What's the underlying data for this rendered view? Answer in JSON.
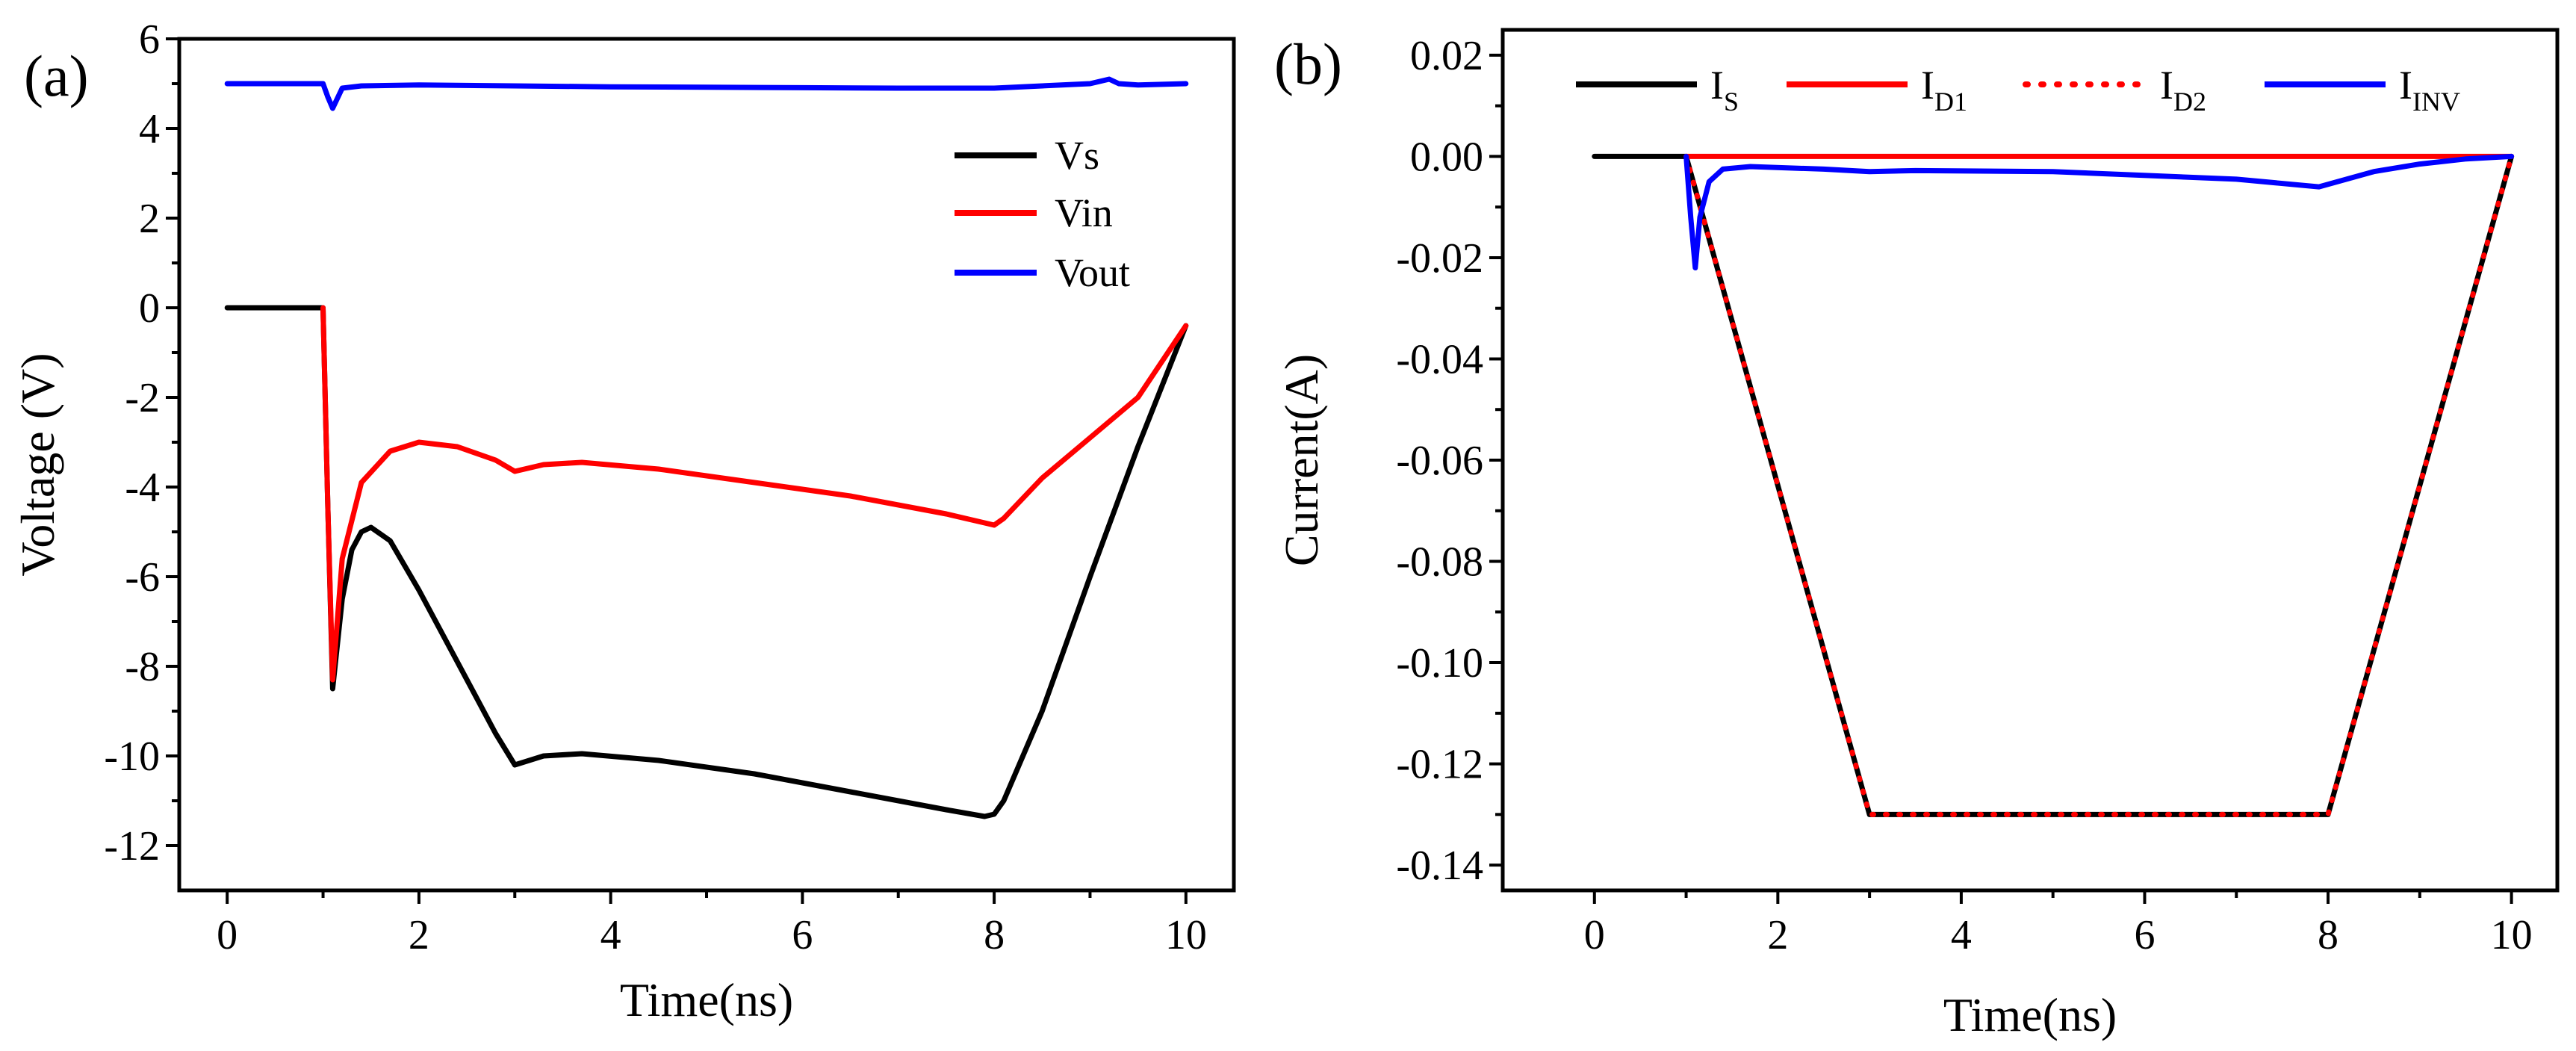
{
  "chart_data": [
    {
      "panel_label": "(a)",
      "type": "line",
      "xlabel": "Time(ns)",
      "ylabel": "Voltage (V)",
      "xlim": [
        -0.5,
        10.5
      ],
      "ylim": [
        -13,
        6
      ],
      "xticks": [
        0,
        2,
        4,
        6,
        8,
        10
      ],
      "yticks": [
        6,
        4,
        2,
        0,
        -2,
        -4,
        -6,
        -8,
        -10,
        -12
      ],
      "tick_labels_x": [
        "0",
        "2",
        "4",
        "6",
        "8",
        "10"
      ],
      "tick_labels_y": [
        "6",
        "4",
        "2",
        "0",
        "-2",
        "-4",
        "-6",
        "-8",
        "-10",
        "-12"
      ],
      "grid": false,
      "legend_position": "top-right",
      "series": [
        {
          "name": "Vs",
          "color": "#000000",
          "dash": "solid",
          "x": [
            0,
            1.0,
            1.05,
            1.1,
            1.2,
            1.3,
            1.4,
            1.5,
            1.7,
            2.0,
            2.4,
            2.8,
            3.0,
            3.3,
            3.7,
            4.5,
            5.5,
            6.5,
            7.5,
            7.9,
            8.0,
            8.1,
            8.5,
            9.0,
            9.5,
            10.0
          ],
          "y": [
            0,
            0,
            -4.5,
            -8.5,
            -6.5,
            -5.4,
            -5.0,
            -4.9,
            -5.2,
            -6.3,
            -7.9,
            -9.5,
            -10.2,
            -10.0,
            -9.95,
            -10.1,
            -10.4,
            -10.8,
            -11.2,
            -11.35,
            -11.3,
            -11.0,
            -9.0,
            -6.0,
            -3.1,
            -0.4
          ]
        },
        {
          "name": "Vin",
          "color": "#ff0000",
          "dash": "solid",
          "x": [
            1.0,
            1.05,
            1.1,
            1.2,
            1.4,
            1.7,
            2.0,
            2.4,
            2.8,
            3.0,
            3.3,
            3.7,
            4.5,
            5.5,
            6.5,
            7.5,
            7.9,
            8.0,
            8.1,
            8.5,
            9.0,
            9.5,
            10.0
          ],
          "y": [
            0,
            -4.5,
            -8.3,
            -5.6,
            -3.9,
            -3.2,
            -3.0,
            -3.1,
            -3.4,
            -3.65,
            -3.5,
            -3.45,
            -3.6,
            -3.9,
            -4.2,
            -4.6,
            -4.8,
            -4.85,
            -4.7,
            -3.8,
            -2.9,
            -2.0,
            -0.4
          ]
        },
        {
          "name": "Vout",
          "color": "#0000ff",
          "dash": "solid",
          "x": [
            0,
            1.0,
            1.05,
            1.1,
            1.2,
            1.4,
            2.0,
            3.0,
            4.0,
            5.0,
            6.0,
            7.0,
            8.0,
            8.5,
            9.0,
            9.2,
            9.3,
            9.5,
            10.0
          ],
          "y": [
            5.0,
            5.0,
            4.7,
            4.45,
            4.9,
            4.95,
            4.97,
            4.95,
            4.93,
            4.92,
            4.91,
            4.9,
            4.9,
            4.95,
            5.0,
            5.1,
            5.0,
            4.97,
            5.0
          ]
        }
      ]
    },
    {
      "panel_label": "(b)",
      "type": "line",
      "xlabel": "Time(ns)",
      "ylabel": "Current(A)",
      "xlim": [
        -1,
        10.5
      ],
      "ylim": [
        -0.145,
        0.025
      ],
      "xticks": [
        0,
        2,
        4,
        6,
        8,
        10
      ],
      "yticks": [
        0.02,
        0.0,
        -0.02,
        -0.04,
        -0.06,
        -0.08,
        -0.1,
        -0.12,
        -0.14
      ],
      "tick_labels_x": [
        "0",
        "2",
        "4",
        "6",
        "8",
        "10"
      ],
      "tick_labels_y": [
        "0.02",
        "0.00",
        "-0.02",
        "-0.04",
        "-0.06",
        "-0.08",
        "-0.10",
        "-0.12",
        "-0.14"
      ],
      "grid": false,
      "legend_position": "top",
      "series": [
        {
          "name": "I",
          "subscript": "S",
          "color": "#000000",
          "dash": "solid",
          "x": [
            0,
            1.0,
            3.0,
            8.0,
            10.0
          ],
          "y": [
            0,
            0,
            -0.13,
            -0.13,
            0
          ]
        },
        {
          "name": "I",
          "subscript": "D1",
          "color": "#ff0000",
          "dash": "solid",
          "x": [
            1.0,
            10.0
          ],
          "y": [
            0,
            0
          ]
        },
        {
          "name": "I",
          "subscript": "D2",
          "color": "#ff0000",
          "dash": "dotted",
          "x": [
            1.0,
            3.0,
            8.0,
            10.0
          ],
          "y": [
            0,
            -0.13,
            -0.13,
            0
          ]
        },
        {
          "name": "I",
          "subscript": "INV",
          "color": "#0000ff",
          "dash": "solid",
          "x": [
            1.0,
            1.05,
            1.1,
            1.15,
            1.25,
            1.4,
            1.7,
            2.5,
            3.0,
            3.5,
            5.0,
            7.0,
            7.9,
            8.0,
            8.5,
            9.0,
            9.5,
            10.0
          ],
          "y": [
            0,
            -0.012,
            -0.022,
            -0.012,
            -0.005,
            -0.0025,
            -0.002,
            -0.0025,
            -0.003,
            -0.0028,
            -0.003,
            -0.0045,
            -0.006,
            -0.0055,
            -0.003,
            -0.0015,
            -0.0005,
            0
          ]
        }
      ]
    }
  ]
}
